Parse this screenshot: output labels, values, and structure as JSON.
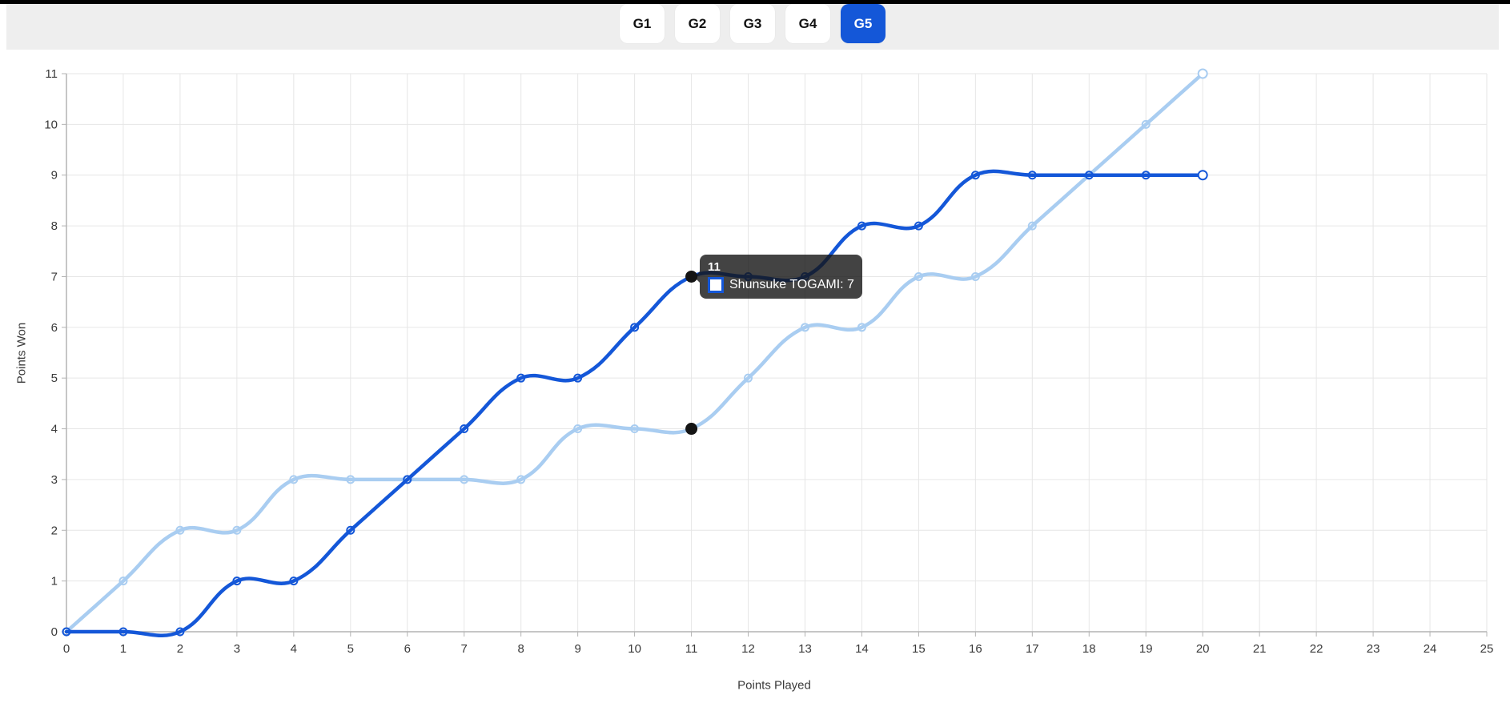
{
  "tabs": [
    {
      "label": "G1",
      "active": false
    },
    {
      "label": "G2",
      "active": false
    },
    {
      "label": "G3",
      "active": false
    },
    {
      "label": "G4",
      "active": false
    },
    {
      "label": "G5",
      "active": true
    }
  ],
  "colors": {
    "accent": "#1457d8",
    "tab_bar_bg": "#eeeeee",
    "top_bar": "#000000",
    "dark_series": "#1457d8",
    "light_series": "#a9cdf1",
    "grid": "#e6e6e6",
    "axis": "#b3b3b3",
    "tick_text": "#3a3a3a",
    "tooltip_bg": "rgba(20,20,20,0.8)",
    "highlight_dot": "#141414",
    "marker_fill": "#ffffff"
  },
  "tooltip": {
    "title": "11",
    "line": "Shunsuke TOGAMI: 7"
  },
  "chart_data": {
    "type": "line",
    "title": "",
    "xlabel": "Points Played",
    "ylabel": "Points Won",
    "x": [
      0,
      1,
      2,
      3,
      4,
      5,
      6,
      7,
      8,
      9,
      10,
      11,
      12,
      13,
      14,
      15,
      16,
      17,
      18,
      19,
      20
    ],
    "series": [
      {
        "id": "series-light",
        "label": "",
        "color": "#a9cdf1",
        "values": [
          0,
          1,
          2,
          2,
          3,
          3,
          3,
          3,
          3,
          4,
          4,
          4,
          5,
          6,
          6,
          7,
          7,
          8,
          9,
          10,
          11
        ]
      },
      {
        "id": "series-togami",
        "label": "Shunsuke TOGAMI",
        "color": "#1457d8",
        "values": [
          0,
          0,
          0,
          1,
          1,
          2,
          3,
          4,
          5,
          5,
          6,
          7,
          7,
          7,
          8,
          8,
          9,
          9,
          9,
          9,
          9
        ]
      }
    ],
    "xlim": [
      0,
      25
    ],
    "ylim": [
      0,
      11
    ],
    "x_ticks": [
      0,
      1,
      2,
      3,
      4,
      5,
      6,
      7,
      8,
      9,
      10,
      11,
      12,
      13,
      14,
      15,
      16,
      17,
      18,
      19,
      20,
      21,
      22,
      23,
      24,
      25
    ],
    "y_ticks": [
      0,
      1,
      2,
      3,
      4,
      5,
      6,
      7,
      8,
      9,
      10,
      11
    ],
    "grid": true,
    "legend_position": "none",
    "line_tension": 0.4,
    "highlight": {
      "x": 11,
      "values": [
        4,
        7
      ]
    }
  }
}
